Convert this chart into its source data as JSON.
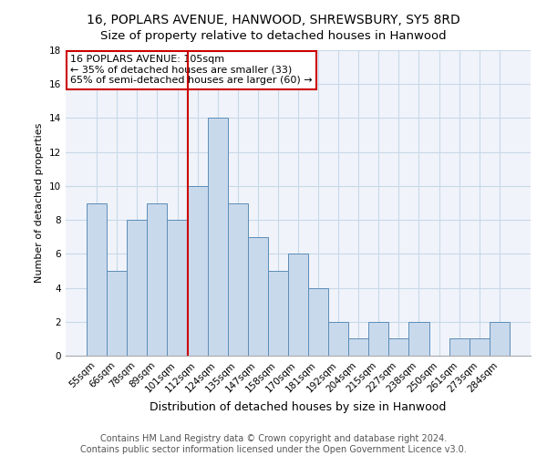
{
  "title": "16, POPLARS AVENUE, HANWOOD, SHREWSBURY, SY5 8RD",
  "subtitle": "Size of property relative to detached houses in Hanwood",
  "xlabel": "Distribution of detached houses by size in Hanwood",
  "ylabel": "Number of detached properties",
  "categories": [
    "55sqm",
    "66sqm",
    "78sqm",
    "89sqm",
    "101sqm",
    "112sqm",
    "124sqm",
    "135sqm",
    "147sqm",
    "158sqm",
    "170sqm",
    "181sqm",
    "192sqm",
    "204sqm",
    "215sqm",
    "227sqm",
    "238sqm",
    "250sqm",
    "261sqm",
    "273sqm",
    "284sqm"
  ],
  "bar_heights": [
    9,
    5,
    8,
    9,
    8,
    10,
    14,
    9,
    7,
    5,
    6,
    4,
    2,
    1,
    2,
    1,
    2,
    0,
    1,
    1,
    2
  ],
  "bar_color": "#c9d9ec",
  "bar_edge_color": "#5b8db8",
  "vline_x_index": 5,
  "vline_color": "#cc0000",
  "annotation_text_line1": "16 POPLARS AVENUE: 105sqm",
  "annotation_text_line2": "← 35% of detached houses are smaller (33)",
  "annotation_text_line3": "65% of semi-detached houses are larger (60) →",
  "annotation_box_color": "#cc0000",
  "ylim": [
    0,
    18
  ],
  "yticks": [
    0,
    2,
    4,
    6,
    8,
    10,
    12,
    14,
    16,
    18
  ],
  "footer_line1": "Contains HM Land Registry data © Crown copyright and database right 2024.",
  "footer_line2": "Contains public sector information licensed under the Open Government Licence v3.0.",
  "title_fontsize": 10,
  "xlabel_fontsize": 9,
  "ylabel_fontsize": 8,
  "tick_fontsize": 7.5,
  "annotation_fontsize": 8,
  "footer_fontsize": 7,
  "bg_color": "#f0f4fa",
  "grid_color": "#c8d8e8"
}
